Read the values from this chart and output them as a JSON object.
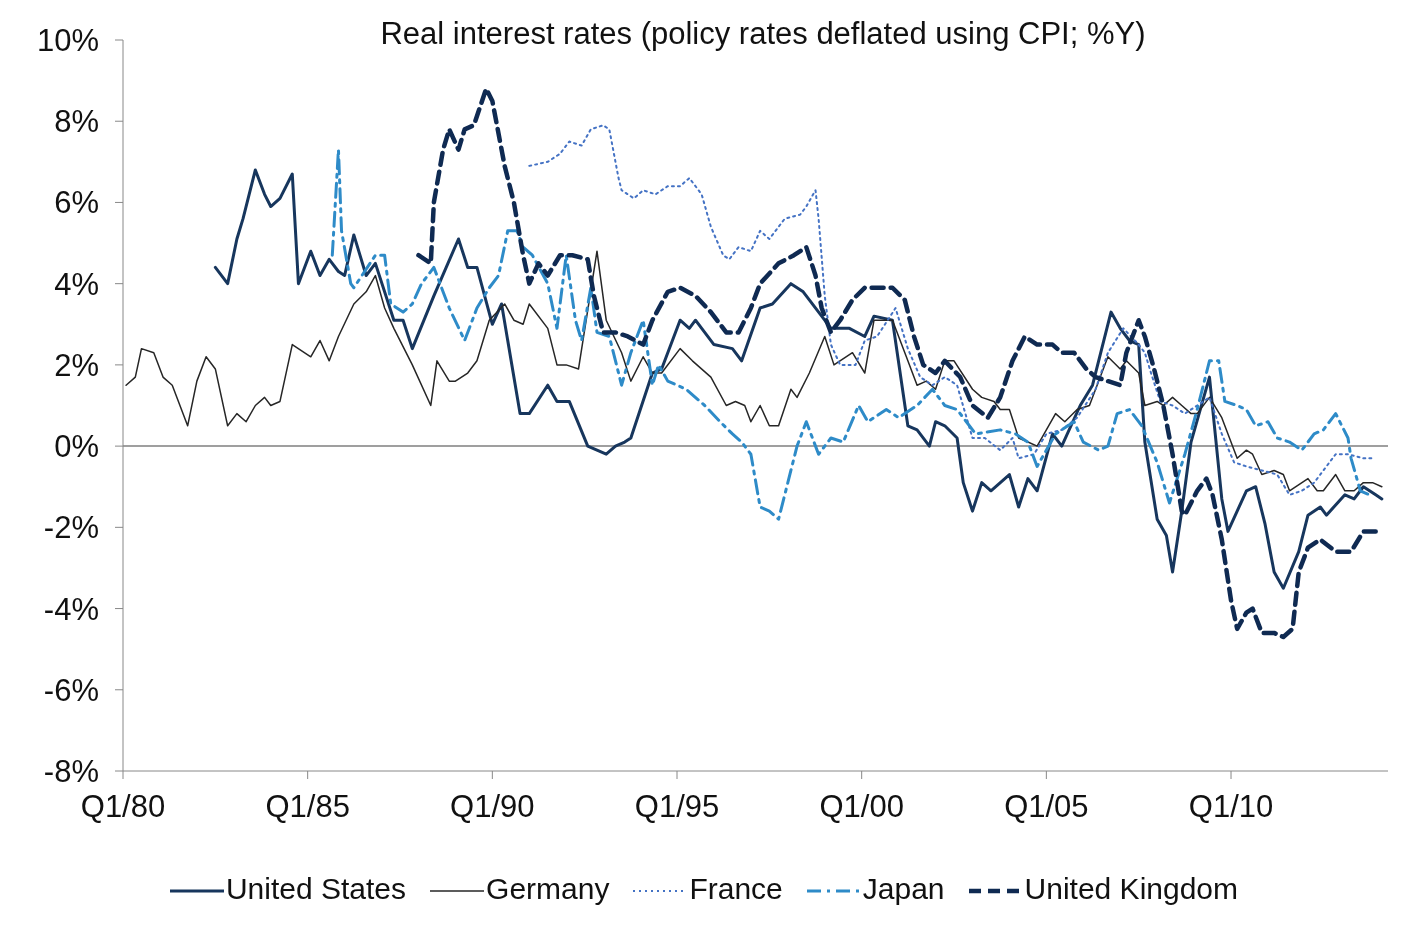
{
  "chart_data": {
    "type": "line",
    "title": "Real interest rates (policy rates deflated using CPI; %Y)",
    "xlim": [
      "1980-01",
      "2014-04"
    ],
    "xticks": [
      {
        "value": "1980-01",
        "label": "Q1/80"
      },
      {
        "value": "1985-01",
        "label": "Q1/85"
      },
      {
        "value": "1990-01",
        "label": "Q1/90"
      },
      {
        "value": "1995-01",
        "label": "Q1/95"
      },
      {
        "value": "2000-01",
        "label": "Q1/00"
      },
      {
        "value": "2005-01",
        "label": "Q1/05"
      },
      {
        "value": "2010-01",
        "label": "Q1/10"
      }
    ],
    "ylim": [
      -8,
      10
    ],
    "yticks": [
      {
        "value": -8,
        "label": "-8%"
      },
      {
        "value": -6,
        "label": "-6%"
      },
      {
        "value": -4,
        "label": "-4%"
      },
      {
        "value": -2,
        "label": "-2%"
      },
      {
        "value": 0,
        "label": "0%"
      },
      {
        "value": 2,
        "label": "2%"
      },
      {
        "value": 4,
        "label": "4%"
      },
      {
        "value": 6,
        "label": "6%"
      },
      {
        "value": 8,
        "label": "8%"
      },
      {
        "value": 10,
        "label": "10%"
      }
    ],
    "grid": false,
    "legend": "bottom",
    "marker": "none",
    "ref_lines": [
      {
        "axis": "y",
        "value": 0,
        "label": null,
        "color": "#7f7f7f"
      }
    ],
    "series": [
      {
        "name": "United States",
        "color": "#17365d",
        "line_style": "solid",
        "x": [
          "1982-07",
          "1982-11",
          "1983-02",
          "1983-04",
          "1983-08",
          "1983-11",
          "1984-01",
          "1984-04",
          "1984-08",
          "1984-10",
          "1985-02",
          "1985-05",
          "1985-08",
          "1985-11",
          "1986-01",
          "1986-04",
          "1986-08",
          "1986-11",
          "1987-05",
          "1987-08",
          "1987-11",
          "1988-06",
          "1989-02",
          "1989-05",
          "1989-08",
          "1990-01",
          "1990-04",
          "1990-10",
          "1991-01",
          "1991-07",
          "1991-10",
          "1992-02",
          "1992-08",
          "1993-02",
          "1993-05",
          "1993-08",
          "1993-10",
          "1994-05",
          "1994-08",
          "1995-02",
          "1995-05",
          "1995-07",
          "1996-01",
          "1996-07",
          "1996-10",
          "1997-04",
          "1997-08",
          "1998-02",
          "1998-06",
          "1998-12",
          "1999-03",
          "1999-06",
          "1999-09",
          "2000-02",
          "2000-05",
          "2000-11",
          "2001-04",
          "2001-07",
          "2001-11",
          "2002-01",
          "2002-04",
          "2002-08",
          "2002-10",
          "2003-01",
          "2003-04",
          "2003-07",
          "2004-01",
          "2004-04",
          "2004-07",
          "2004-10",
          "2005-03",
          "2005-06",
          "2005-12",
          "2006-04",
          "2006-10",
          "2007-01",
          "2007-04",
          "2007-07",
          "2007-09",
          "2008-01",
          "2008-04",
          "2008-06",
          "2008-09",
          "2008-12",
          "2009-06",
          "2009-10",
          "2009-12",
          "2010-06",
          "2010-09",
          "2010-12",
          "2011-03",
          "2011-06",
          "2011-11",
          "2012-02",
          "2012-06",
          "2012-08",
          "2013-02",
          "2013-05",
          "2013-08",
          "2013-12",
          "2014-02"
        ],
        "values": [
          4.4,
          4.0,
          5.1,
          5.6,
          6.8,
          6.2,
          5.9,
          6.1,
          6.7,
          4.0,
          4.8,
          4.2,
          4.6,
          4.3,
          4.2,
          5.2,
          4.2,
          4.5,
          3.1,
          3.1,
          2.4,
          3.7,
          5.1,
          4.4,
          4.4,
          3.0,
          3.5,
          0.8,
          0.8,
          1.5,
          1.1,
          1.1,
          0.0,
          -0.2,
          0.0,
          0.1,
          0.2,
          1.8,
          1.9,
          3.1,
          2.9,
          3.1,
          2.5,
          2.4,
          2.1,
          3.4,
          3.5,
          4.0,
          3.8,
          3.2,
          2.9,
          2.9,
          2.9,
          2.7,
          3.2,
          3.1,
          0.5,
          0.4,
          0.0,
          0.6,
          0.5,
          0.2,
          -0.9,
          -1.6,
          -0.9,
          -1.1,
          -0.7,
          -1.5,
          -0.8,
          -1.1,
          0.3,
          0.0,
          1.0,
          1.5,
          3.3,
          2.9,
          2.6,
          2.5,
          0.1,
          -1.8,
          -2.2,
          -3.1,
          -1.6,
          0.1,
          1.7,
          -1.3,
          -2.1,
          -1.1,
          -1.0,
          -1.9,
          -3.1,
          -3.5,
          -2.6,
          -1.7,
          -1.5,
          -1.7,
          -1.2,
          -1.3,
          -1.0,
          -1.2,
          -1.3
        ]
      },
      {
        "name": "Germany",
        "color": "#262626",
        "line_style": "solid",
        "x": [
          "1980-02",
          "1980-05",
          "1980-07",
          "1980-11",
          "1981-02",
          "1981-05",
          "1981-10",
          "1982-01",
          "1982-04",
          "1982-07",
          "1982-11",
          "1983-02",
          "1983-05",
          "1983-08",
          "1983-11",
          "1984-01",
          "1984-04",
          "1984-08",
          "1985-02",
          "1985-05",
          "1985-08",
          "1985-11",
          "1986-04",
          "1986-08",
          "1986-11",
          "1987-02",
          "1987-05",
          "1987-11",
          "1988-05",
          "1988-07",
          "1988-11",
          "1989-01",
          "1989-05",
          "1989-08",
          "1989-12",
          "1990-05",
          "1990-08",
          "1990-11",
          "1991-01",
          "1991-07",
          "1991-10",
          "1992-01",
          "1992-05",
          "1992-11",
          "1993-02",
          "1993-07",
          "1993-10",
          "1994-02",
          "1994-05",
          "1994-08",
          "1995-02",
          "1995-06",
          "1995-12",
          "1996-05",
          "1996-08",
          "1996-11",
          "1997-01",
          "1997-04",
          "1997-07",
          "1997-10",
          "1998-02",
          "1998-04",
          "1998-08",
          "1999-01",
          "1999-04",
          "1999-10",
          "2000-02",
          "2000-05",
          "2000-11",
          "2001-04",
          "2001-07",
          "2001-10",
          "2002-01",
          "2002-04",
          "2002-07",
          "2003-01",
          "2003-04",
          "2003-08",
          "2003-10",
          "2004-01",
          "2004-04",
          "2004-07",
          "2004-10",
          "2005-01",
          "2005-04",
          "2005-07",
          "2005-11",
          "2006-03",
          "2006-09",
          "2007-01",
          "2007-03",
          "2007-07",
          "2007-09",
          "2008-01",
          "2008-03",
          "2008-06",
          "2008-09",
          "2008-12",
          "2009-02",
          "2009-06",
          "2009-10",
          "2010-03",
          "2010-06",
          "2010-08",
          "2010-11",
          "2011-03",
          "2011-06",
          "2011-08",
          "2012-02",
          "2012-05",
          "2012-07",
          "2012-11",
          "2013-02",
          "2013-05",
          "2013-08",
          "2013-11",
          "2014-02"
        ],
        "values": [
          1.5,
          1.7,
          2.4,
          2.3,
          1.7,
          1.5,
          0.5,
          1.6,
          2.2,
          1.9,
          0.5,
          0.8,
          0.6,
          1.0,
          1.2,
          1.0,
          1.1,
          2.5,
          2.2,
          2.6,
          2.1,
          2.7,
          3.5,
          3.8,
          4.2,
          3.4,
          2.9,
          2.0,
          1.0,
          2.1,
          1.6,
          1.6,
          1.8,
          2.1,
          3.1,
          3.5,
          3.1,
          3.0,
          3.5,
          2.9,
          2.0,
          2.0,
          1.9,
          4.8,
          3.1,
          2.3,
          1.6,
          2.2,
          1.8,
          1.8,
          2.4,
          2.1,
          1.7,
          1.0,
          1.1,
          1.0,
          0.6,
          1.0,
          0.5,
          0.5,
          1.4,
          1.2,
          1.8,
          2.7,
          2.0,
          2.3,
          1.8,
          3.1,
          3.1,
          2.1,
          1.5,
          1.6,
          1.4,
          2.1,
          2.1,
          1.4,
          1.2,
          1.1,
          0.9,
          0.9,
          0.2,
          0.1,
          0.0,
          0.4,
          0.8,
          0.6,
          0.9,
          1.0,
          2.2,
          1.9,
          2.1,
          1.8,
          1.0,
          1.1,
          1.0,
          1.2,
          1.0,
          0.8,
          0.8,
          1.2,
          0.7,
          -0.3,
          -0.1,
          -0.2,
          -0.7,
          -0.6,
          -0.7,
          -1.1,
          -0.8,
          -1.1,
          -1.1,
          -0.7,
          -1.1,
          -1.1,
          -0.9,
          -0.9,
          -1.0
        ]
      },
      {
        "name": "France",
        "color": "#4472c4",
        "line_style": "dotted",
        "x": [
          "1991-01",
          "1991-07",
          "1991-11",
          "1992-02",
          "1992-06",
          "1992-09",
          "1993-01",
          "1993-03",
          "1993-04",
          "1993-06",
          "1993-07",
          "1993-11",
          "1994-02",
          "1994-06",
          "1994-10",
          "1995-02",
          "1995-05",
          "1995-09",
          "1995-12",
          "1996-04",
          "1996-06",
          "1996-09",
          "1997-01",
          "1997-04",
          "1997-07",
          "1997-12",
          "1998-05",
          "1998-07",
          "1998-10",
          "1998-11",
          "1999-01",
          "1999-03",
          "1999-06",
          "1999-11",
          "2000-02",
          "2000-06",
          "2000-12",
          "2001-04",
          "2001-08",
          "2001-12",
          "2002-04",
          "2002-08",
          "2003-01",
          "2003-05",
          "2003-10",
          "2004-02",
          "2004-04",
          "2004-09",
          "2005-01",
          "2005-06",
          "2005-11",
          "2006-05",
          "2006-09",
          "2007-02",
          "2007-07",
          "2007-09",
          "2007-11",
          "2008-02",
          "2008-06",
          "2008-10",
          "2009-02",
          "2009-06",
          "2009-10",
          "2010-02",
          "2010-06",
          "2010-11",
          "2011-04",
          "2011-08",
          "2011-12",
          "2012-04",
          "2012-11",
          "2013-03",
          "2013-08",
          "2013-11"
        ],
        "values": [
          6.9,
          7.0,
          7.2,
          7.5,
          7.4,
          7.8,
          7.9,
          7.8,
          7.4,
          6.6,
          6.3,
          6.1,
          6.3,
          6.2,
          6.4,
          6.4,
          6.6,
          6.2,
          5.4,
          4.7,
          4.6,
          4.9,
          4.8,
          5.3,
          5.1,
          5.6,
          5.7,
          5.9,
          6.3,
          5.6,
          3.7,
          2.5,
          2.0,
          2.0,
          2.6,
          2.7,
          3.4,
          2.4,
          1.7,
          1.5,
          1.7,
          1.5,
          0.2,
          0.2,
          -0.1,
          0.2,
          -0.3,
          -0.2,
          0.3,
          0.4,
          0.7,
          1.4,
          2.3,
          2.9,
          2.5,
          2.3,
          1.8,
          1.1,
          1.0,
          0.8,
          1.0,
          1.2,
          0.3,
          -0.4,
          -0.5,
          -0.6,
          -0.7,
          -1.2,
          -1.1,
          -0.9,
          -0.2,
          -0.2,
          -0.3,
          -0.3
        ]
      },
      {
        "name": "Japan",
        "color": "#2e8bc8",
        "line_style": "dashdot",
        "x": [
          "1985-09",
          "1985-11",
          "1985-12",
          "1986-03",
          "1986-04",
          "1986-11",
          "1987-02",
          "1987-04",
          "1987-08",
          "1987-11",
          "1988-02",
          "1988-06",
          "1988-11",
          "1989-04",
          "1989-08",
          "1989-12",
          "1990-03",
          "1990-06",
          "1990-09",
          "1990-11",
          "1991-02",
          "1991-07",
          "1991-10",
          "1992-01",
          "1992-04",
          "1992-06",
          "1992-09",
          "1992-11",
          "1993-03",
          "1993-07",
          "1993-10",
          "1994-02",
          "1994-05",
          "1994-07",
          "1994-10",
          "1995-04",
          "1995-10",
          "1996-03",
          "1996-07",
          "1996-10",
          "1997-01",
          "1997-04",
          "1997-07",
          "1997-10",
          "1998-01",
          "1998-04",
          "1998-07",
          "1998-11",
          "1999-03",
          "1999-07",
          "1999-12",
          "2000-03",
          "2000-09",
          "2001-01",
          "2001-07",
          "2001-12",
          "2002-04",
          "2002-08",
          "2003-02",
          "2003-10",
          "2004-03",
          "2004-07",
          "2004-10",
          "2005-04",
          "2005-10",
          "2006-01",
          "2006-06",
          "2006-09",
          "2006-12",
          "2007-04",
          "2007-08",
          "2008-01",
          "2008-05",
          "2008-10",
          "2009-02",
          "2009-06",
          "2009-09",
          "2009-11",
          "2010-03",
          "2010-06",
          "2010-09",
          "2011-01",
          "2011-04",
          "2011-08",
          "2011-12",
          "2012-04",
          "2012-07",
          "2012-11",
          "2013-03",
          "2013-04",
          "2013-07",
          "2013-10"
        ],
        "values": [
          4.7,
          7.3,
          5.3,
          4.0,
          3.9,
          4.7,
          4.7,
          3.5,
          3.3,
          3.5,
          4.0,
          4.4,
          3.4,
          2.6,
          3.4,
          3.9,
          4.2,
          5.3,
          5.3,
          4.9,
          4.7,
          4.0,
          2.9,
          4.7,
          3.1,
          2.6,
          3.9,
          2.8,
          2.7,
          1.5,
          2.3,
          3.1,
          1.5,
          2.0,
          1.6,
          1.4,
          1.0,
          0.6,
          0.3,
          0.1,
          -0.2,
          -1.5,
          -1.6,
          -1.8,
          -0.9,
          0.0,
          0.6,
          -0.2,
          0.2,
          0.1,
          1.0,
          0.6,
          0.9,
          0.7,
          1.0,
          1.4,
          1.0,
          0.9,
          0.3,
          0.4,
          0.3,
          0.1,
          -0.5,
          0.3,
          0.6,
          0.1,
          -0.1,
          0.0,
          0.8,
          0.9,
          0.5,
          -0.4,
          -1.4,
          -0.2,
          0.9,
          2.1,
          2.1,
          1.1,
          1.0,
          0.9,
          0.5,
          0.6,
          0.2,
          0.1,
          -0.1,
          0.3,
          0.4,
          0.8,
          0.2,
          -0.3,
          -1.1,
          -1.2
        ]
      },
      {
        "name": "United Kingdom",
        "color": "#0f2a52",
        "line_style": "dashed",
        "x": [
          "1988-01",
          "1988-05",
          "1988-06",
          "1988-09",
          "1988-11",
          "1989-02",
          "1989-04",
          "1989-07",
          "1989-11",
          "1990-01",
          "1990-05",
          "1990-08",
          "1990-11",
          "1991-01",
          "1991-04",
          "1991-07",
          "1991-11",
          "1992-03",
          "1992-08",
          "1992-10",
          "1993-01",
          "1993-05",
          "1993-09",
          "1994-02",
          "1994-05",
          "1994-10",
          "1995-02",
          "1995-07",
          "1995-12",
          "1996-05",
          "1996-09",
          "1997-01",
          "1997-04",
          "1997-10",
          "1998-03",
          "1998-07",
          "1998-10",
          "1998-12",
          "1999-03",
          "1999-06",
          "1999-10",
          "2000-02",
          "2000-07",
          "2000-11",
          "2001-03",
          "2001-06",
          "2001-09",
          "2002-01",
          "2002-04",
          "2002-09",
          "2003-01",
          "2003-06",
          "2003-10",
          "2004-02",
          "2004-06",
          "2004-10",
          "2005-03",
          "2005-06",
          "2005-10",
          "2006-02",
          "2006-05",
          "2006-09",
          "2007-01",
          "2007-03",
          "2007-07",
          "2007-09",
          "2007-12",
          "2008-03",
          "2008-06",
          "2008-09",
          "2008-10",
          "2009-02",
          "2009-05",
          "2009-07",
          "2009-10",
          "2010-01",
          "2010-03",
          "2010-06",
          "2010-08",
          "2010-11",
          "2011-03",
          "2011-06",
          "2011-09",
          "2011-11",
          "2012-02",
          "2012-06",
          "2012-11",
          "2013-04",
          "2013-08",
          "2013-12"
        ],
        "values": [
          4.7,
          4.5,
          6.0,
          7.3,
          7.8,
          7.3,
          7.8,
          7.9,
          8.8,
          8.5,
          6.9,
          6.0,
          4.7,
          4.0,
          4.5,
          4.2,
          4.7,
          4.7,
          4.6,
          3.7,
          2.8,
          2.8,
          2.7,
          2.5,
          3.1,
          3.8,
          3.9,
          3.7,
          3.3,
          2.8,
          2.8,
          3.4,
          4.0,
          4.5,
          4.7,
          4.9,
          4.2,
          3.4,
          2.8,
          3.1,
          3.6,
          3.9,
          3.9,
          3.9,
          3.6,
          2.7,
          2.0,
          1.8,
          2.1,
          1.7,
          1.0,
          0.7,
          1.2,
          2.1,
          2.7,
          2.5,
          2.5,
          2.3,
          2.3,
          1.9,
          1.7,
          1.6,
          1.5,
          2.3,
          3.1,
          2.7,
          1.9,
          1.0,
          -0.2,
          -1.6,
          -1.7,
          -1.1,
          -0.8,
          -1.2,
          -2.3,
          -3.8,
          -4.5,
          -4.1,
          -4.0,
          -4.6,
          -4.6,
          -4.7,
          -4.5,
          -3.1,
          -2.5,
          -2.3,
          -2.6,
          -2.6,
          -2.1,
          -2.1
        ]
      }
    ]
  }
}
